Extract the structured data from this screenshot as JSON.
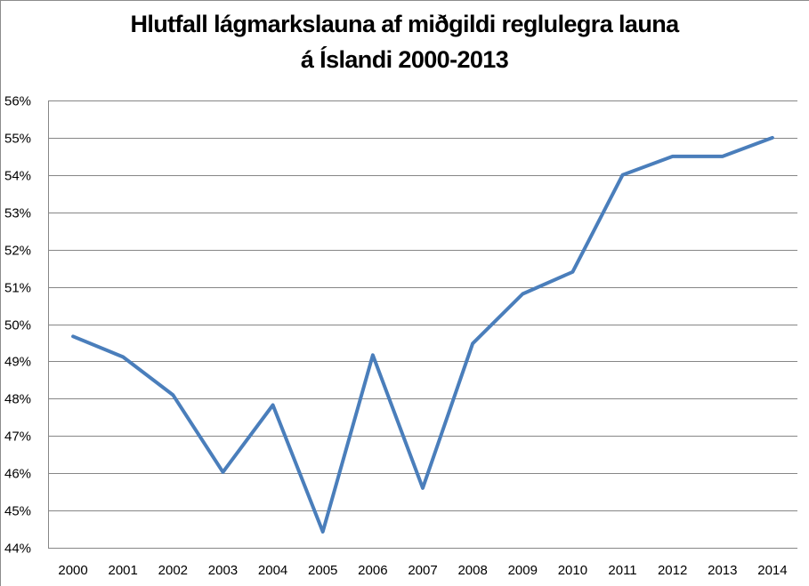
{
  "chart_data": {
    "type": "line",
    "title": "Hlutfall lágmarkslauna af miðgildi reglulegra launa á Íslandi 2000-2013",
    "title_lines": [
      "Hlutfall lágmarkslauna af miðgildi reglulegra launa",
      "á Íslandi 2000-2013"
    ],
    "xlabel": "",
    "ylabel": "",
    "categories": [
      "2000",
      "2001",
      "2002",
      "2003",
      "2004",
      "2005",
      "2006",
      "2007",
      "2008",
      "2009",
      "2010",
      "2011",
      "2012",
      "2013",
      "2014"
    ],
    "series": [
      {
        "name": "Hlutfall lágmarkslauna",
        "color": "#4a7ebb",
        "values": [
          49.67,
          49.12,
          48.1,
          46.03,
          47.83,
          44.43,
          49.17,
          45.6,
          49.48,
          50.81,
          51.4,
          54.0,
          54.5,
          54.5,
          55.0
        ]
      }
    ],
    "ylim": [
      44,
      56
    ],
    "y_ticks": [
      "44%",
      "45%",
      "46%",
      "47%",
      "48%",
      "49%",
      "50%",
      "51%",
      "52%",
      "53%",
      "54%",
      "55%",
      "56%"
    ],
    "y_format": "percent",
    "grid": true,
    "legend": "none"
  }
}
